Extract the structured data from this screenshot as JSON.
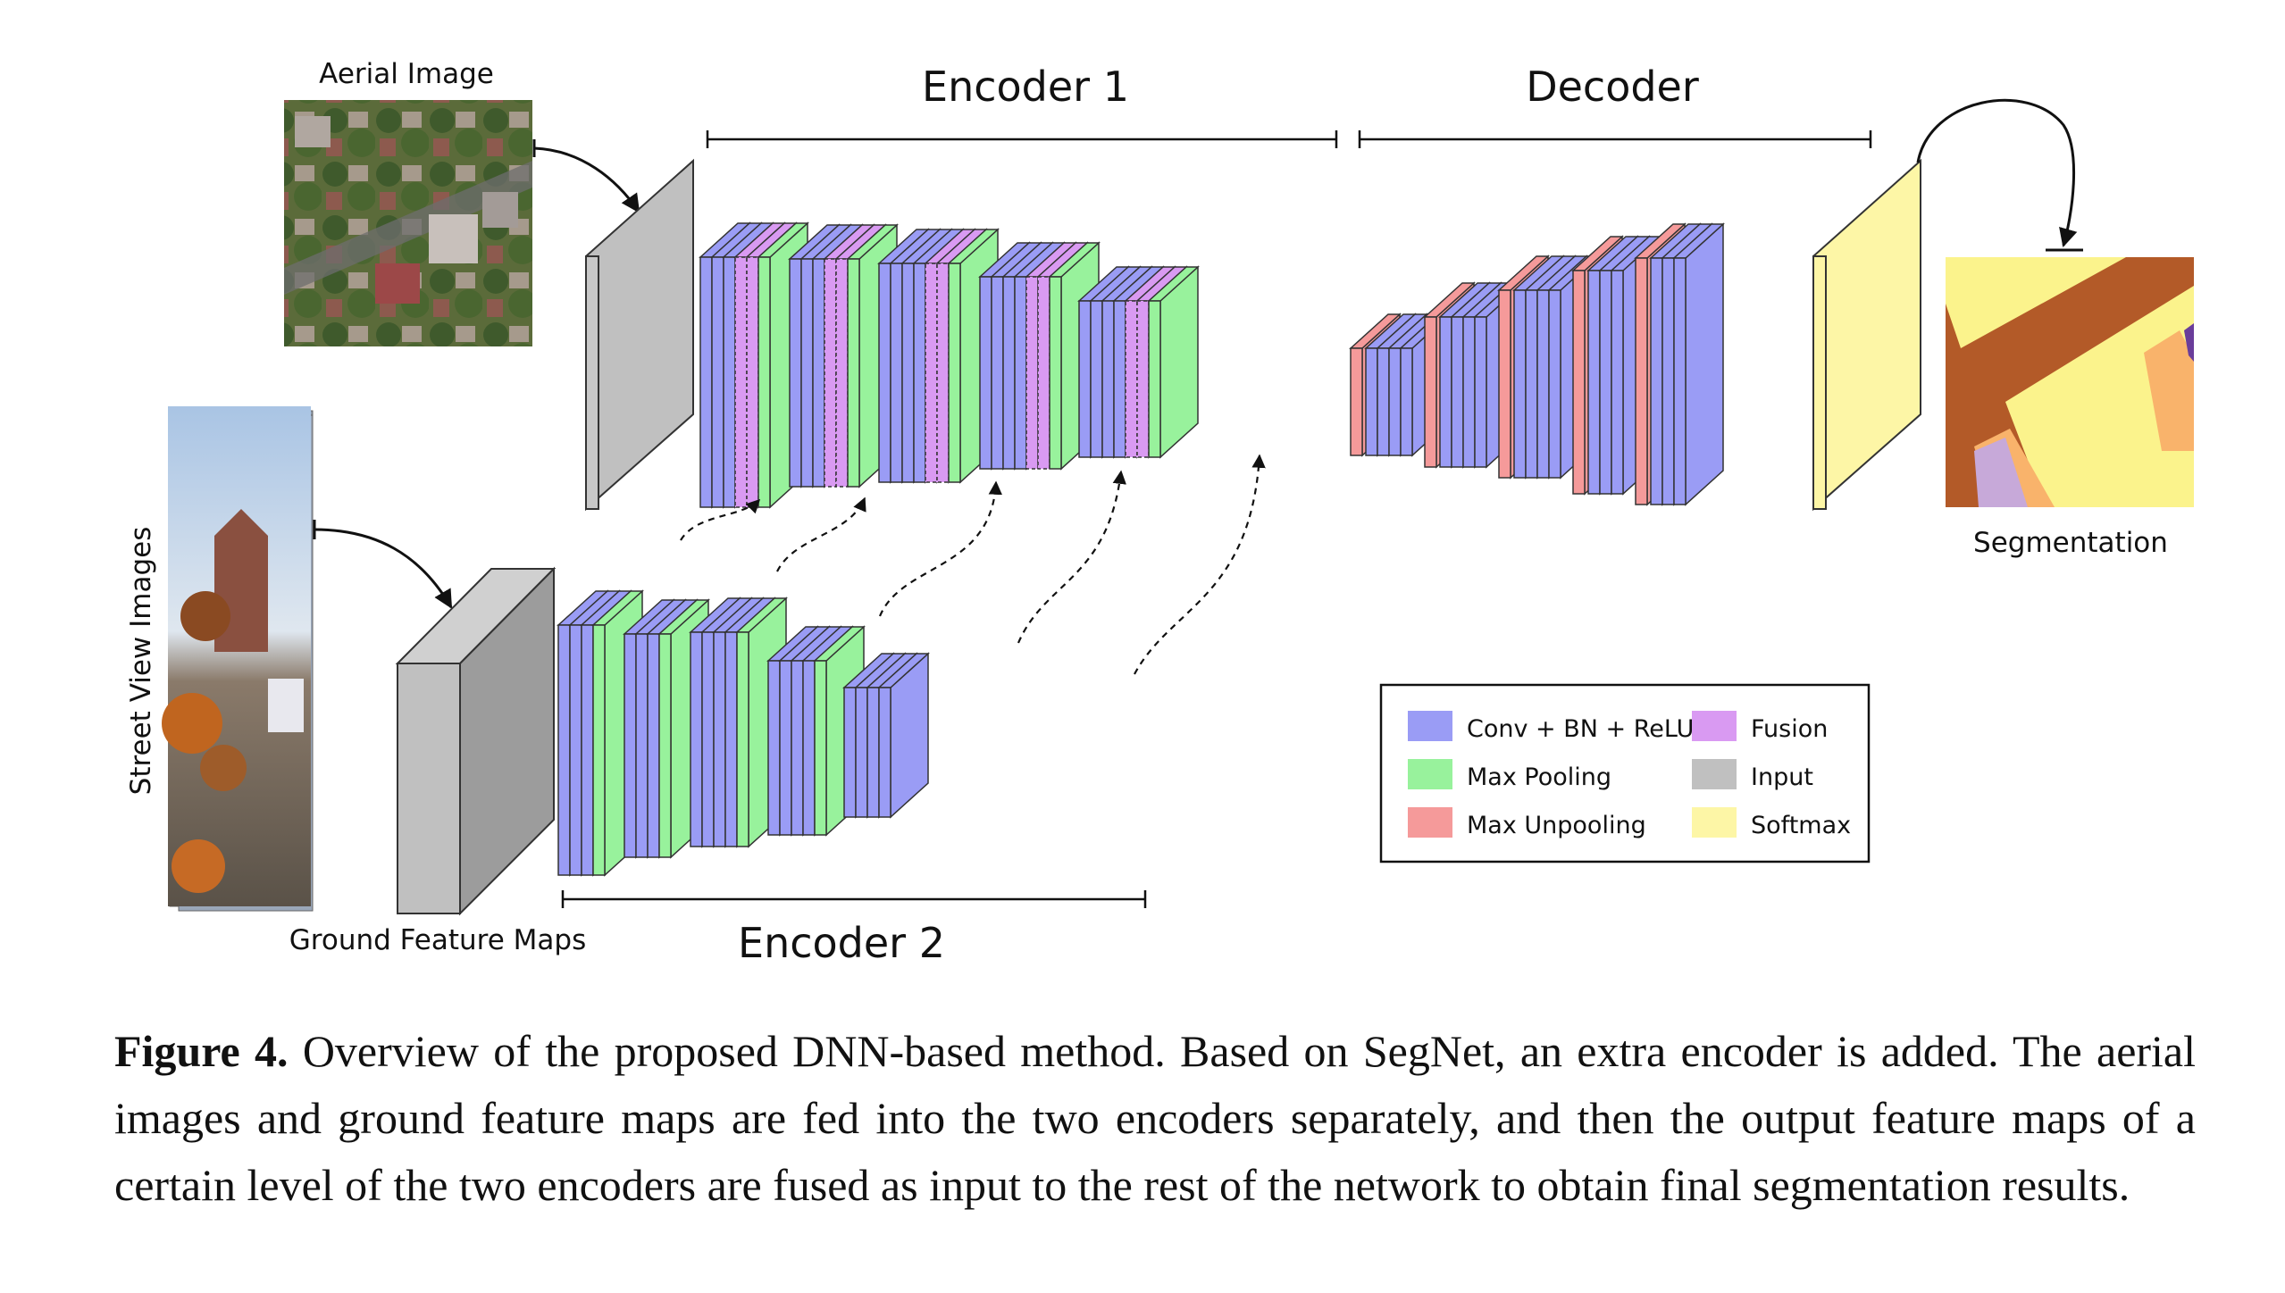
{
  "labels": {
    "aerial_image": "Aerial Image",
    "street_view_images": "Street View Images",
    "ground_feature_maps": "Ground Feature Maps",
    "encoder1": "Encoder 1",
    "encoder2": "Encoder 2",
    "decoder": "Decoder",
    "segmentation": "Segmentation"
  },
  "legend": {
    "items": [
      {
        "label": "Conv + BN + ReLU",
        "color": "#9a9cf5"
      },
      {
        "label": "Fusion",
        "color": "#d99af2"
      },
      {
        "label": "Max Pooling",
        "color": "#98f29c"
      },
      {
        "label": "Input",
        "color": "#c0c0c0"
      },
      {
        "label": "Max Unpooling",
        "color": "#f59a9a"
      },
      {
        "label": "Softmax",
        "color": "#fdf6a6"
      }
    ]
  },
  "caption": {
    "figure_label": "Figure 4.",
    "text": "Overview of the proposed DNN-based method. Based on SegNet, an extra encoder is added. The aerial images and ground feature maps are fed into the two encoders separately, and then the output feature maps of a certain level of the two encoders are fused as input to the rest of the network to obtain final segmentation results."
  },
  "colors": {
    "conv": "#9a9cf5",
    "fusion": "#d99af2",
    "pool": "#98f29c",
    "input": "#c0c0c0",
    "unpool": "#f59a9a",
    "softmax": "#fdf6a6",
    "seg_brown": "#b35a28",
    "seg_yellow": "#fbf38c",
    "seg_orange": "#f9b36b",
    "seg_lavender": "#c7a9d9",
    "seg_purple": "#6a3d9a"
  }
}
